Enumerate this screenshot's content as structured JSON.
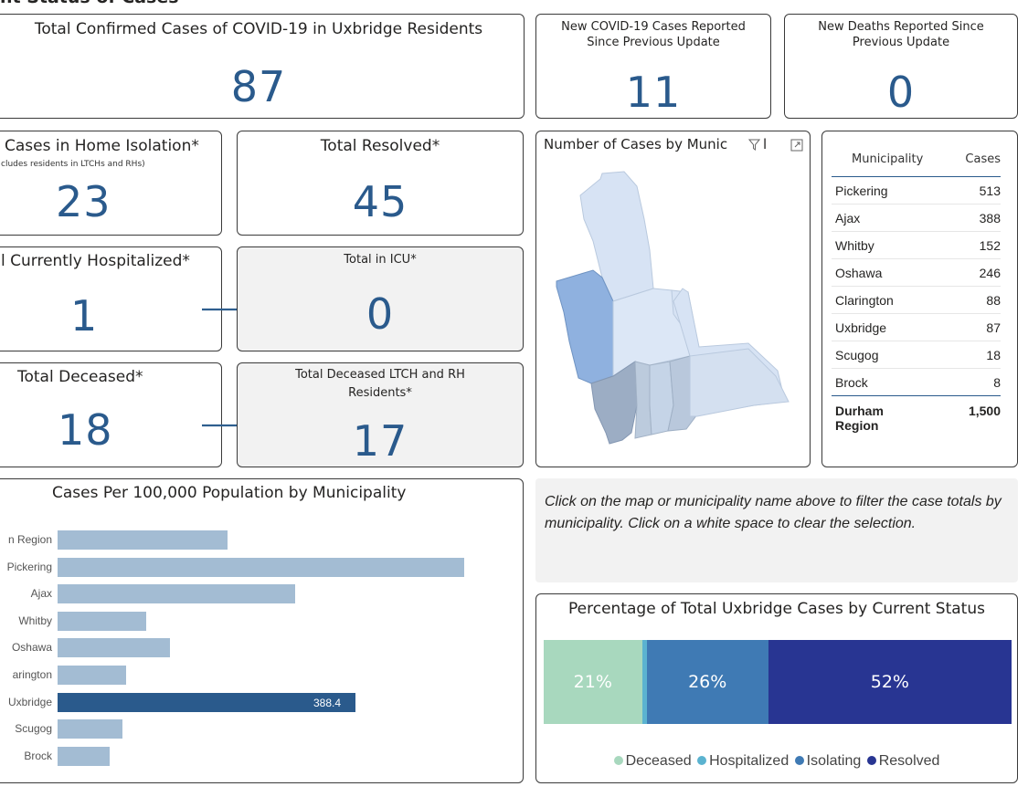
{
  "header": {
    "partial_title": "nt Status of Cases"
  },
  "total_confirmed": {
    "title": "Total Confirmed Cases of COVID-19 in Uxbridge Residents",
    "value": "87"
  },
  "new_cases": {
    "title_line1": "New COVID-19 Cases Reported",
    "title_line2": "Since Previous Update",
    "value": "11"
  },
  "new_deaths": {
    "title_line1": "New Deaths Reported Since",
    "title_line2": "Previous Update",
    "value": "0"
  },
  "home_isolation": {
    "title": "Cases in Home Isolation*",
    "subtitle": "cludes residents in LTCHs and RHs)",
    "value": "23"
  },
  "total_resolved": {
    "title": "Total Resolved*",
    "value": "45"
  },
  "hospitalized": {
    "title": "l Currently Hospitalized*",
    "value": "1"
  },
  "icu": {
    "title": "Total in ICU*",
    "value": "0"
  },
  "deceased": {
    "title": "Total Deceased*",
    "value": "18"
  },
  "deceased_ltch": {
    "title_line1": "Total Deceased LTCH and RH",
    "title_line2": "Residents*",
    "value": "17"
  },
  "map": {
    "title": "Number of Cases by Munic",
    "overflow_glyph": "l"
  },
  "table": {
    "col_municipality": "Municipality",
    "col_cases": "Cases",
    "rows": [
      {
        "name": "Pickering",
        "cases": "513"
      },
      {
        "name": "Ajax",
        "cases": "388"
      },
      {
        "name": "Whitby",
        "cases": "152"
      },
      {
        "name": "Oshawa",
        "cases": "246"
      },
      {
        "name": "Clarington",
        "cases": "88"
      },
      {
        "name": "Uxbridge",
        "cases": "87"
      },
      {
        "name": "Scugog",
        "cases": "18"
      },
      {
        "name": "Brock",
        "cases": "8"
      }
    ],
    "total_line1": "Durham",
    "total_line2": "Region",
    "total_cases": "1,500"
  },
  "note": {
    "text": "Click on the map or municipality name above to filter the case totals by municipality. Click on a white space to clear the selection."
  },
  "colors": {
    "accent": "#2a5a8c",
    "bar": "#a3bcd3",
    "deceased": "#a8d8be",
    "hospitalized": "#5bb3d0",
    "isolating": "#3f7ab4",
    "resolved": "#283592"
  },
  "chart_data": [
    {
      "type": "bar",
      "orientation": "horizontal",
      "title": "Cases Per 100,000 Population by Municipality",
      "categories": [
        "n Region",
        "Pickering",
        "Ajax",
        "Whitby",
        "Oshawa",
        "arington",
        "Uxbridge",
        "Scugog",
        "Brock"
      ],
      "values": [
        222,
        530,
        310,
        115,
        146,
        89,
        388.4,
        84,
        68
      ],
      "highlight": "Uxbridge",
      "data_label": "388.4",
      "xlim": [
        0,
        560
      ]
    },
    {
      "type": "bar",
      "orientation": "stacked-100",
      "title": "Percentage of Total Uxbridge Cases by Current Status",
      "series": [
        {
          "name": "Deceased",
          "value": 21,
          "label": "21%"
        },
        {
          "name": "Hospitalized",
          "value": 1,
          "label": ""
        },
        {
          "name": "Isolating",
          "value": 26,
          "label": "26%"
        },
        {
          "name": "Resolved",
          "value": 52,
          "label": "52%"
        }
      ]
    }
  ]
}
